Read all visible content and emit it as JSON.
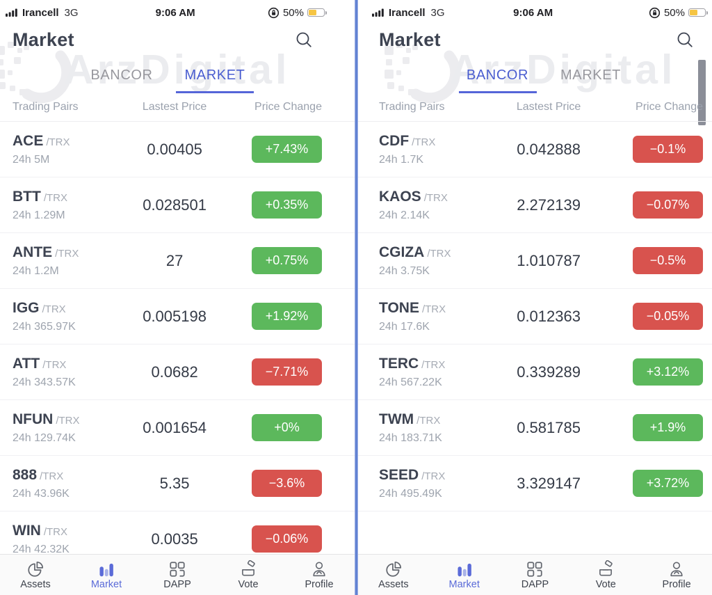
{
  "colors": {
    "accent_blue": "#4a5dd0",
    "tab_underline_blue": "#5565d8",
    "positive_green": "#5cb85c",
    "negative_red": "#d8534e",
    "divider_blue": "#5f80d2",
    "battery_yellow": "#f6c544"
  },
  "tab_bar": {
    "items": [
      {
        "label": "Assets",
        "icon": "pie-chart-icon",
        "active": false
      },
      {
        "label": "Market",
        "icon": "bar-chart-icon",
        "active": true
      },
      {
        "label": "DAPP",
        "icon": "grid-icon",
        "active": false
      },
      {
        "label": "Vote",
        "icon": "ballot-box-icon",
        "active": false
      },
      {
        "label": "Profile",
        "icon": "person-icon",
        "active": false
      }
    ]
  },
  "panels": [
    {
      "status_bar": {
        "carrier": "Irancell",
        "network": "3G",
        "time": "9:06 AM",
        "battery_percent": "50%"
      },
      "title": "Market",
      "search_icon": "search-icon",
      "watermark": "ArzDigital",
      "tabs": [
        {
          "label": "BANCOR",
          "active": false
        },
        {
          "label": "MARKET",
          "active": true
        }
      ],
      "columns": [
        "Trading Pairs",
        "Lastest Price",
        "Price Change"
      ],
      "rows": [
        {
          "symbol": "ACE",
          "quote": "/TRX",
          "volume": "24h 5M",
          "price": "0.00405",
          "change": "+7.43%",
          "direction": "up"
        },
        {
          "symbol": "BTT",
          "quote": "/TRX",
          "volume": "24h 1.29M",
          "price": "0.028501",
          "change": "+0.35%",
          "direction": "up"
        },
        {
          "symbol": "ANTE",
          "quote": "/TRX",
          "volume": "24h 1.2M",
          "price": "27",
          "change": "+0.75%",
          "direction": "up"
        },
        {
          "symbol": "IGG",
          "quote": "/TRX",
          "volume": "24h 365.97K",
          "price": "0.005198",
          "change": "+1.92%",
          "direction": "up"
        },
        {
          "symbol": "ATT",
          "quote": "/TRX",
          "volume": "24h 343.57K",
          "price": "0.0682",
          "change": "−7.71%",
          "direction": "down"
        },
        {
          "symbol": "NFUN",
          "quote": "/TRX",
          "volume": "24h 129.74K",
          "price": "0.001654",
          "change": "+0%",
          "direction": "up"
        },
        {
          "symbol": "888",
          "quote": "/TRX",
          "volume": "24h 43.96K",
          "price": "5.35",
          "change": "−3.6%",
          "direction": "down"
        },
        {
          "symbol": "WIN",
          "quote": "/TRX",
          "volume": "24h 42.32K",
          "price": "0.0035",
          "change": "−0.06%",
          "direction": "down"
        }
      ]
    },
    {
      "status_bar": {
        "carrier": "Irancell",
        "network": "3G",
        "time": "9:06 AM",
        "battery_percent": "50%"
      },
      "title": "Market",
      "search_icon": "search-icon",
      "watermark": "ArzDigital",
      "tabs": [
        {
          "label": "BANCOR",
          "active": true
        },
        {
          "label": "MARKET",
          "active": false
        }
      ],
      "columns": [
        "Trading Pairs",
        "Lastest Price",
        "Price Change"
      ],
      "rows": [
        {
          "symbol": "CDF",
          "quote": "/TRX",
          "volume": "24h 1.7K",
          "price": "0.042888",
          "change": "−0.1%",
          "direction": "down"
        },
        {
          "symbol": "KAOS",
          "quote": "/TRX",
          "volume": "24h 2.14K",
          "price": "2.272139",
          "change": "−0.07%",
          "direction": "down"
        },
        {
          "symbol": "CGIZA",
          "quote": "/TRX",
          "volume": "24h 3.75K",
          "price": "1.010787",
          "change": "−0.5%",
          "direction": "down"
        },
        {
          "symbol": "TONE",
          "quote": "/TRX",
          "volume": "24h 17.6K",
          "price": "0.012363",
          "change": "−0.05%",
          "direction": "down"
        },
        {
          "symbol": "TERC",
          "quote": "/TRX",
          "volume": "24h 567.22K",
          "price": "0.339289",
          "change": "+3.12%",
          "direction": "up"
        },
        {
          "symbol": "TWM",
          "quote": "/TRX",
          "volume": "24h 183.71K",
          "price": "0.581785",
          "change": "+1.9%",
          "direction": "up"
        },
        {
          "symbol": "SEED",
          "quote": "/TRX",
          "volume": "24h 495.49K",
          "price": "3.329147",
          "change": "+3.72%",
          "direction": "up"
        }
      ]
    }
  ]
}
